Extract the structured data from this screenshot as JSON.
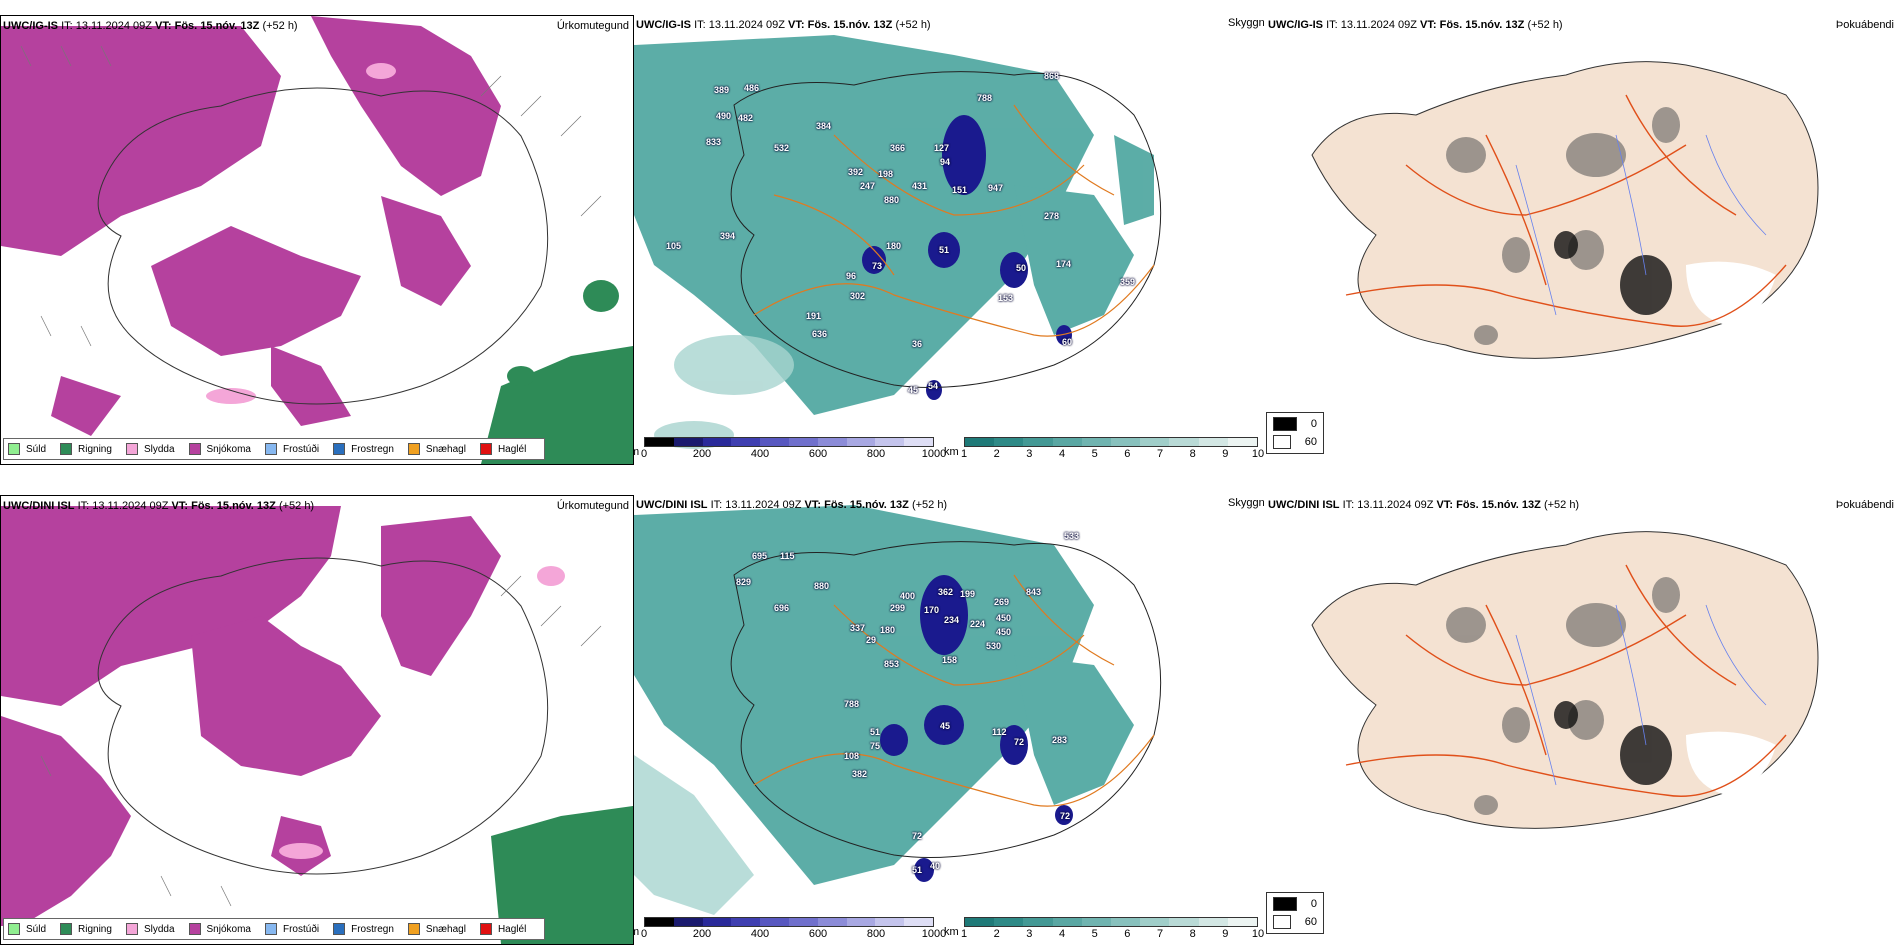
{
  "rows": [
    {
      "model": "UWC/IG-IS",
      "it": "IT: 13.11.2024 09Z",
      "vt": "VT: Fös. 15.nóv. 13Z",
      "lead": "(+52 h)",
      "precip_title": "Úrkomutegund",
      "cloudbase_title": "Skyggni",
      "fog_title": "Þokuábendi",
      "labels": [
        "389",
        "486",
        "490",
        "482",
        "833",
        "532",
        "384",
        "788",
        "366",
        "127",
        "94",
        "392",
        "198",
        "247",
        "880",
        "431",
        "151",
        "947",
        "278",
        "394",
        "105",
        "180",
        "51",
        "50",
        "174",
        "73",
        "96",
        "302",
        "153",
        "359",
        "191",
        "636",
        "60",
        "36",
        "45",
        "54",
        "868"
      ]
    },
    {
      "model": "UWC/DINI ISL",
      "it": "IT: 13.11.2024 09Z",
      "vt": "VT: Fös. 15.nóv. 13Z",
      "lead": "(+52 h)",
      "precip_title": "Úrkomutegund",
      "cloudbase_title": "Skyggni",
      "fog_title": "Þokuábendi",
      "labels": [
        "695",
        "115",
        "829",
        "880",
        "696",
        "400",
        "299",
        "170",
        "362",
        "199",
        "269",
        "843",
        "450",
        "337",
        "180",
        "234",
        "224",
        "29",
        "450",
        "530",
        "158",
        "853",
        "788",
        "51",
        "75",
        "45",
        "112",
        "72",
        "283",
        "108",
        "382",
        "72",
        "51",
        "40",
        "72",
        "533"
      ]
    }
  ],
  "precip_legend": [
    {
      "name": "Súld",
      "color": "#90ee90"
    },
    {
      "name": "Rigning",
      "color": "#2e8b57"
    },
    {
      "name": "Slydda",
      "color": "#f4a6d8"
    },
    {
      "name": "Snjókoma",
      "color": "#b5419e"
    },
    {
      "name": "Frostúði",
      "color": "#87b8f0"
    },
    {
      "name": "Frostregn",
      "color": "#2a6fbd"
    },
    {
      "name": "Snæhagl",
      "color": "#f0a020"
    },
    {
      "name": "Haglél",
      "color": "#e01010"
    }
  ],
  "cloudbase_bar": {
    "unit": "m",
    "ticks": [
      "0",
      "200",
      "400",
      "600",
      "800",
      "1000"
    ],
    "colors": [
      "#000000",
      "#1a1a6e",
      "#2a2a9a",
      "#3f3fb0",
      "#5858c0",
      "#7070cc",
      "#8c8cd8",
      "#a8a8e2",
      "#c4c4ec",
      "#dedef5"
    ]
  },
  "visibility_bar": {
    "unit": "km",
    "ticks": [
      "1",
      "2",
      "3",
      "4",
      "5",
      "6",
      "7",
      "8",
      "9",
      "10"
    ],
    "colors": [
      "#1f7a78",
      "#2f8a87",
      "#449995",
      "#5aa7a3",
      "#70b4b0",
      "#88c1bd",
      "#a0cec9",
      "#b9dad6",
      "#d3e7e4",
      "#ecf4f2"
    ]
  },
  "fog_legend": [
    {
      "value": "0",
      "color": "#000000"
    },
    {
      "value": "60",
      "color": "#ffffff"
    }
  ]
}
